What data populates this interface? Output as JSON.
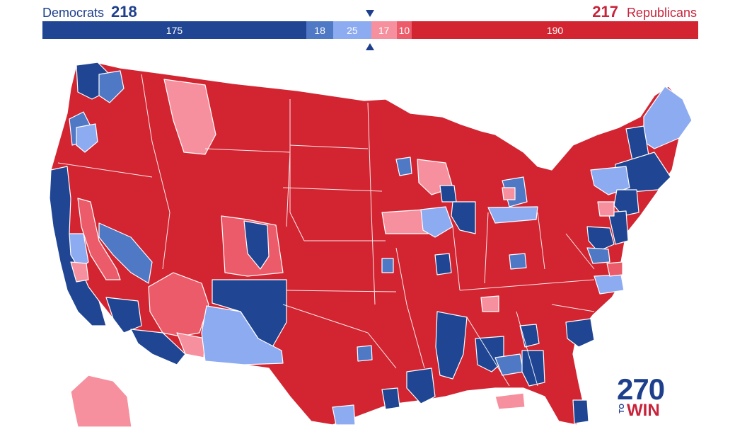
{
  "header": {
    "dem_label": "Democrats",
    "dem_total": "218",
    "rep_total": "217",
    "rep_label": "Republicans"
  },
  "bar": {
    "segments": [
      {
        "key": "safe_d",
        "label": "175",
        "value": 175,
        "color": "#1f4593"
      },
      {
        "key": "likely_d",
        "label": "18",
        "value": 18,
        "color": "#4f78c5"
      },
      {
        "key": "lean_d",
        "label": "25",
        "value": 25,
        "color": "#8cabf1"
      },
      {
        "key": "lean_r",
        "label": "17",
        "value": 17,
        "color": "#f7909e"
      },
      {
        "key": "likely_r",
        "label": "10",
        "value": 10,
        "color": "#ec5b69"
      },
      {
        "key": "safe_r",
        "label": "190",
        "value": 190,
        "color": "#d22531"
      }
    ]
  },
  "colors": {
    "safe_d": "#1f4593",
    "likely_d": "#4f78c5",
    "lean_d": "#8cabf1",
    "lean_r": "#f7909e",
    "likely_r": "#ec5b69",
    "safe_r": "#d22531",
    "border": "#ffffff"
  },
  "logo": {
    "number": "270",
    "to": "TO",
    "win": "WIN"
  }
}
